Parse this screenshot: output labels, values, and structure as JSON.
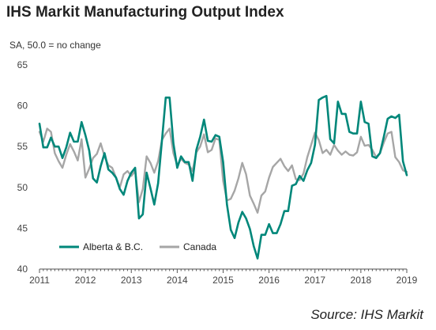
{
  "chart_data": {
    "type": "line",
    "title": "IHS Markit Manufacturing Output Index",
    "subtitle": "SA, 50.0 = no change",
    "source": "Source: IHS Markit",
    "ylim": [
      40,
      65
    ],
    "yticks": [
      40,
      45,
      50,
      55,
      60,
      65
    ],
    "xlim": [
      2011,
      2019
    ],
    "xticks": [
      2011,
      2012,
      2013,
      2014,
      2015,
      2016,
      2017,
      2018,
      2019
    ],
    "legend_position": "bottom-left",
    "x_start": 2011,
    "x_step_months": 1,
    "series": [
      {
        "name": "Alberta & B.C.",
        "color": "#00877a",
        "values": [
          57.8,
          54.9,
          54.9,
          56.1,
          55.0,
          55.0,
          53.6,
          54.9,
          56.7,
          55.6,
          55.6,
          58.0,
          56.4,
          54.5,
          51.1,
          50.6,
          52.6,
          54.2,
          52.2,
          51.8,
          51.2,
          49.8,
          49.1,
          50.8,
          51.8,
          52.4,
          46.2,
          46.7,
          51.8,
          49.9,
          47.9,
          50.5,
          55.7,
          61.0,
          61.0,
          55.4,
          52.4,
          53.8,
          53.1,
          53.1,
          50.8,
          54.6,
          56.2,
          58.3,
          55.7,
          55.6,
          56.4,
          56.2,
          53.1,
          47.9,
          44.8,
          43.8,
          45.7,
          47.0,
          46.2,
          44.9,
          42.8,
          41.3,
          44.2,
          44.2,
          45.5,
          44.4,
          44.4,
          45.5,
          47.1,
          47.1,
          50.2,
          50.4,
          51.4,
          50.8,
          52.1,
          53.0,
          55.2,
          60.7,
          61.0,
          61.2,
          55.9,
          55.4,
          60.5,
          59.0,
          59.0,
          56.8,
          56.6,
          56.6,
          60.5,
          58.0,
          57.8,
          53.8,
          53.6,
          54.2,
          56.2,
          58.4,
          58.7,
          58.5,
          58.9,
          53.2,
          51.5
        ]
      },
      {
        "name": "Canada",
        "color": "#a6a6a6",
        "values": [
          56.8,
          55.6,
          57.2,
          56.8,
          54.2,
          53.2,
          52.4,
          54.0,
          55.3,
          54.4,
          53.3,
          55.9,
          51.2,
          52.3,
          53.6,
          54.1,
          55.4,
          53.8,
          52.7,
          52.4,
          51.2,
          50.0,
          51.6,
          52.0,
          51.4,
          52.0,
          48.2,
          49.8,
          53.8,
          53.0,
          51.8,
          53.2,
          55.8,
          56.6,
          57.2,
          54.2,
          52.7,
          53.5,
          53.0,
          52.8,
          52.0,
          54.3,
          55.0,
          56.5,
          54.3,
          54.6,
          56.0,
          55.8,
          50.8,
          48.4,
          48.6,
          49.6,
          51.1,
          53.0,
          51.6,
          49.0,
          48.0,
          46.9,
          49.0,
          49.5,
          51.2,
          52.5,
          53.0,
          53.5,
          52.6,
          52.0,
          52.7,
          51.0,
          50.9,
          51.7,
          53.7,
          55.2,
          56.7,
          55.8,
          54.2,
          54.6,
          54.0,
          55.2,
          54.5,
          54.0,
          54.4,
          54.0,
          53.9,
          54.3,
          56.2,
          55.1,
          55.2,
          54.6,
          53.7,
          54.2,
          55.5,
          56.6,
          56.8,
          53.7,
          53.1,
          52.1,
          51.9
        ]
      }
    ]
  }
}
